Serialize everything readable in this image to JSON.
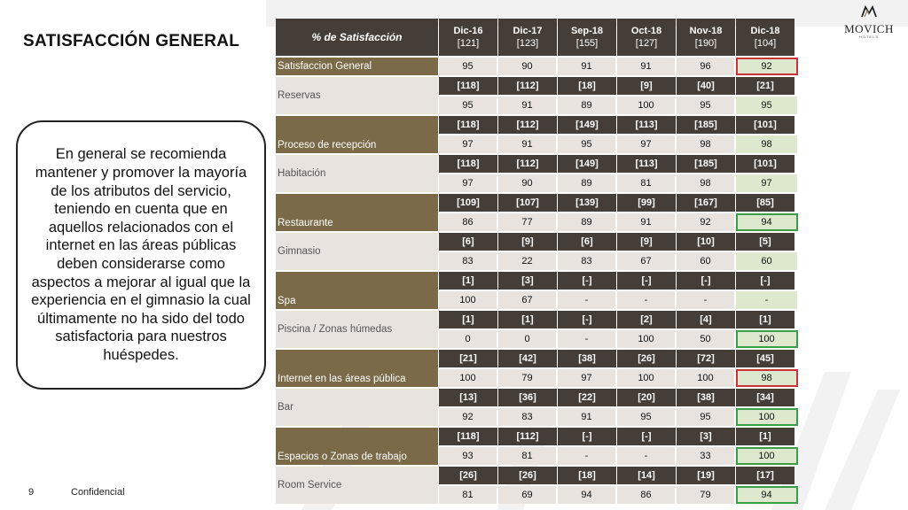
{
  "title": "SATISFACCIÓN GENERAL",
  "callout_text": "En general se recomienda mantener y promover la mayoría de los atributos del servicio, teniendo en cuenta que en aquellos relacionados con el internet en las áreas públicas deben considerarse como aspectos a mejorar al igual que la experiencia en el gimnasio la cual últimamente no ha sido del todo satisfactoria para nuestros huéspedes.",
  "logo": {
    "name": "MOVICH",
    "sub": "HOTELS"
  },
  "table": {
    "header_label": "% de Satisfacción",
    "periods": [
      {
        "label": "Dic-16",
        "count": "[121]"
      },
      {
        "label": "Dic-17",
        "count": "[123]"
      },
      {
        "label": "Sep-18",
        "count": "[155]"
      },
      {
        "label": "Oct-18",
        "count": "[127]"
      },
      {
        "label": "Nov-18",
        "count": "[190]"
      },
      {
        "label": "Dic-18",
        "count": "[104]"
      }
    ],
    "rows": [
      {
        "name": "Satisfaccion General",
        "style": "dark",
        "values": [
          "95",
          "90",
          "91",
          "91",
          "96",
          "92"
        ],
        "highlight": "red"
      },
      {
        "name": "Reservas",
        "counts": [
          "[118]",
          "[112]",
          "[18]",
          "[9]",
          "[40]",
          "[21]"
        ],
        "values": [
          "95",
          "91",
          "89",
          "100",
          "95",
          "95"
        ],
        "highlight": ""
      },
      {
        "name": "Proceso de recepción",
        "style": "dark",
        "counts": [
          "[118]",
          "[112]",
          "[149]",
          "[113]",
          "[185]",
          "[101]"
        ],
        "values": [
          "97",
          "91",
          "95",
          "97",
          "98",
          "98"
        ],
        "highlight": ""
      },
      {
        "name": "Habitación",
        "counts": [
          "[118]",
          "[112]",
          "[149]",
          "[113]",
          "[185]",
          "[101]"
        ],
        "values": [
          "97",
          "90",
          "89",
          "81",
          "98",
          "97"
        ],
        "highlight": ""
      },
      {
        "name": "Restaurante",
        "style": "dark",
        "counts": [
          "[109]",
          "[107]",
          "[139]",
          "[99]",
          "[167]",
          "[85]"
        ],
        "values": [
          "86",
          "77",
          "89",
          "91",
          "92",
          "94"
        ],
        "highlight": "green"
      },
      {
        "name": "Gimnasio",
        "counts": [
          "[6]",
          "[9]",
          "[6]",
          "[9]",
          "[10]",
          "[5]"
        ],
        "values": [
          "83",
          "22",
          "83",
          "67",
          "60",
          "60"
        ],
        "highlight": ""
      },
      {
        "name": "Spa",
        "style": "dark",
        "counts": [
          "[1]",
          "[3]",
          "[-]",
          "[-]",
          "[-]",
          "[-]"
        ],
        "values": [
          "100",
          "67",
          "-",
          "-",
          "-",
          "-"
        ],
        "highlight": ""
      },
      {
        "name": "Piscina / Zonas húmedas",
        "counts": [
          "[1]",
          "[1]",
          "[-]",
          "[2]",
          "[4]",
          "[1]"
        ],
        "values": [
          "0",
          "0",
          "-",
          "100",
          "50",
          "100"
        ],
        "highlight": "green"
      },
      {
        "name": "Internet en las áreas pública",
        "style": "dark",
        "counts": [
          "[21]",
          "[42]",
          "[38]",
          "[26]",
          "[72]",
          "[45]"
        ],
        "values": [
          "100",
          "79",
          "97",
          "100",
          "100",
          "98"
        ],
        "highlight": "red"
      },
      {
        "name": "Bar",
        "counts": [
          "[13]",
          "[36]",
          "[22]",
          "[20]",
          "[38]",
          "[34]"
        ],
        "values": [
          "92",
          "83",
          "91",
          "95",
          "95",
          "100"
        ],
        "highlight": "green"
      },
      {
        "name": "Espacios o Zonas de trabajo",
        "style": "dark",
        "counts": [
          "[118]",
          "[112]",
          "[-]",
          "[-]",
          "[3]",
          "[1]"
        ],
        "values": [
          "93",
          "81",
          "-",
          "-",
          "33",
          "100"
        ],
        "highlight": "green"
      },
      {
        "name": "Room Service",
        "counts": [
          "[26]",
          "[26]",
          "[18]",
          "[14]",
          "[19]",
          "[17]"
        ],
        "values": [
          "81",
          "69",
          "94",
          "86",
          "79",
          "94"
        ],
        "highlight": "green"
      }
    ]
  },
  "footer": {
    "page": "9",
    "label": "Confidencial"
  }
}
